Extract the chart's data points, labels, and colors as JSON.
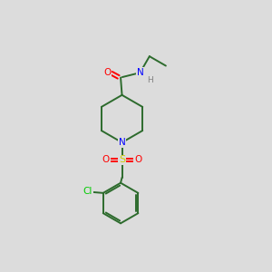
{
  "background_color": "#dcdcdc",
  "bond_color": "#2d6b2d",
  "atom_colors": {
    "O": "#ff0000",
    "N_amide": "#0000ff",
    "N_pip": "#0000ff",
    "S": "#cccc00",
    "Cl": "#00cc00",
    "H": "#808080",
    "C": "#2d6b2d"
  },
  "figsize": [
    3.0,
    3.0
  ],
  "dpi": 100
}
